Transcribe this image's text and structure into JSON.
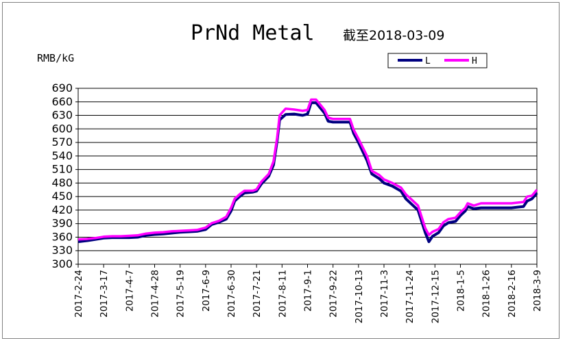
{
  "chart_data": {
    "type": "line",
    "title": "PrNd Metal",
    "subtitle": "截至2018-03-09",
    "ylabel": "RMB/kG",
    "ylim": [
      300,
      690
    ],
    "yticks": [
      "690",
      "660",
      "630",
      "600",
      "570",
      "540",
      "510",
      "480",
      "450",
      "420",
      "390",
      "360",
      "330",
      "300"
    ],
    "grid": true,
    "legend_position": "top-right",
    "xticks": [
      "2017-2-24",
      "2017-3-17",
      "2017-4-7",
      "2017-4-28",
      "2017-5-19",
      "2017-6-9",
      "2017-6-30",
      "2017-7-21",
      "2017-8-11",
      "2017-9-1",
      "2017-9-22",
      "2017-10-13",
      "2017-11-3",
      "2017-11-24",
      "2017-12-15",
      "2018-1-5",
      "2018-1-26",
      "2018-2-16",
      "2018-3-9"
    ],
    "series": [
      {
        "name": "L",
        "color": "#000080",
        "points": [
          [
            "2017-02-24",
            350
          ],
          [
            "2017-03-03",
            352
          ],
          [
            "2017-03-10",
            355
          ],
          [
            "2017-03-17",
            358
          ],
          [
            "2017-03-24",
            359
          ],
          [
            "2017-03-31",
            359
          ],
          [
            "2017-04-07",
            359
          ],
          [
            "2017-04-14",
            360
          ],
          [
            "2017-04-21",
            364
          ],
          [
            "2017-04-28",
            366
          ],
          [
            "2017-05-05",
            367
          ],
          [
            "2017-05-12",
            369
          ],
          [
            "2017-05-19",
            371
          ],
          [
            "2017-05-26",
            372
          ],
          [
            "2017-06-02",
            373
          ],
          [
            "2017-06-09",
            377
          ],
          [
            "2017-06-14",
            388
          ],
          [
            "2017-06-20",
            393
          ],
          [
            "2017-06-26",
            400
          ],
          [
            "2017-06-30",
            418
          ],
          [
            "2017-07-03",
            440
          ],
          [
            "2017-07-07",
            450
          ],
          [
            "2017-07-11",
            458
          ],
          [
            "2017-07-18",
            460
          ],
          [
            "2017-07-21",
            462
          ],
          [
            "2017-07-25",
            478
          ],
          [
            "2017-07-31",
            495
          ],
          [
            "2017-08-04",
            520
          ],
          [
            "2017-08-07",
            575
          ],
          [
            "2017-08-09",
            620
          ],
          [
            "2017-08-14",
            632
          ],
          [
            "2017-08-21",
            633
          ],
          [
            "2017-08-28",
            630
          ],
          [
            "2017-09-01",
            633
          ],
          [
            "2017-09-04",
            658
          ],
          [
            "2017-09-08",
            658
          ],
          [
            "2017-09-12",
            645
          ],
          [
            "2017-09-15",
            635
          ],
          [
            "2017-09-18",
            617
          ],
          [
            "2017-09-22",
            615
          ],
          [
            "2017-10-01",
            615
          ],
          [
            "2017-10-06",
            615
          ],
          [
            "2017-10-09",
            590
          ],
          [
            "2017-10-13",
            570
          ],
          [
            "2017-10-20",
            530
          ],
          [
            "2017-10-24",
            500
          ],
          [
            "2017-10-30",
            490
          ],
          [
            "2017-11-03",
            480
          ],
          [
            "2017-11-10",
            473
          ],
          [
            "2017-11-17",
            462
          ],
          [
            "2017-11-21",
            445
          ],
          [
            "2017-11-27",
            430
          ],
          [
            "2017-12-01",
            420
          ],
          [
            "2017-12-04",
            395
          ],
          [
            "2017-12-07",
            370
          ],
          [
            "2017-12-10",
            350
          ],
          [
            "2017-12-13",
            362
          ],
          [
            "2017-12-18",
            370
          ],
          [
            "2017-12-22",
            385
          ],
          [
            "2017-12-26",
            392
          ],
          [
            "2018-01-01",
            395
          ],
          [
            "2018-01-05",
            408
          ],
          [
            "2018-01-09",
            418
          ],
          [
            "2018-01-11",
            428
          ],
          [
            "2018-01-16",
            423
          ],
          [
            "2018-01-22",
            425
          ],
          [
            "2018-01-26",
            425
          ],
          [
            "2018-02-16",
            425
          ],
          [
            "2018-02-26",
            428
          ],
          [
            "2018-03-01",
            440
          ],
          [
            "2018-03-05",
            445
          ],
          [
            "2018-03-09",
            458
          ]
        ]
      },
      {
        "name": "H",
        "color": "#ff00ff",
        "points": [
          [
            "2017-02-24",
            355
          ],
          [
            "2017-03-03",
            356
          ],
          [
            "2017-03-10",
            358
          ],
          [
            "2017-03-17",
            361
          ],
          [
            "2017-03-24",
            362
          ],
          [
            "2017-03-31",
            362
          ],
          [
            "2017-04-07",
            363
          ],
          [
            "2017-04-14",
            364
          ],
          [
            "2017-04-21",
            368
          ],
          [
            "2017-04-28",
            370
          ],
          [
            "2017-05-05",
            371
          ],
          [
            "2017-05-12",
            373
          ],
          [
            "2017-05-19",
            374
          ],
          [
            "2017-05-26",
            375
          ],
          [
            "2017-06-02",
            376
          ],
          [
            "2017-06-09",
            381
          ],
          [
            "2017-06-14",
            391
          ],
          [
            "2017-06-20",
            396
          ],
          [
            "2017-06-26",
            405
          ],
          [
            "2017-06-30",
            425
          ],
          [
            "2017-07-03",
            445
          ],
          [
            "2017-07-07",
            455
          ],
          [
            "2017-07-11",
            463
          ],
          [
            "2017-07-18",
            463
          ],
          [
            "2017-07-21",
            466
          ],
          [
            "2017-07-25",
            483
          ],
          [
            "2017-07-31",
            500
          ],
          [
            "2017-08-04",
            528
          ],
          [
            "2017-08-07",
            582
          ],
          [
            "2017-08-09",
            630
          ],
          [
            "2017-08-14",
            645
          ],
          [
            "2017-08-21",
            643
          ],
          [
            "2017-08-28",
            640
          ],
          [
            "2017-09-01",
            642
          ],
          [
            "2017-09-04",
            665
          ],
          [
            "2017-09-08",
            665
          ],
          [
            "2017-09-12",
            652
          ],
          [
            "2017-09-15",
            642
          ],
          [
            "2017-09-18",
            625
          ],
          [
            "2017-09-22",
            622
          ],
          [
            "2017-10-01",
            622
          ],
          [
            "2017-10-06",
            622
          ],
          [
            "2017-10-09",
            598
          ],
          [
            "2017-10-13",
            578
          ],
          [
            "2017-10-20",
            540
          ],
          [
            "2017-10-24",
            507
          ],
          [
            "2017-10-30",
            498
          ],
          [
            "2017-11-03",
            488
          ],
          [
            "2017-11-10",
            480
          ],
          [
            "2017-11-17",
            470
          ],
          [
            "2017-11-21",
            455
          ],
          [
            "2017-11-27",
            440
          ],
          [
            "2017-12-01",
            430
          ],
          [
            "2017-12-04",
            405
          ],
          [
            "2017-12-07",
            380
          ],
          [
            "2017-12-10",
            365
          ],
          [
            "2017-12-13",
            372
          ],
          [
            "2017-12-18",
            378
          ],
          [
            "2017-12-22",
            393
          ],
          [
            "2017-12-26",
            400
          ],
          [
            "2018-01-01",
            403
          ],
          [
            "2018-01-05",
            415
          ],
          [
            "2018-01-09",
            425
          ],
          [
            "2018-01-11",
            435
          ],
          [
            "2018-01-16",
            430
          ],
          [
            "2018-01-22",
            435
          ],
          [
            "2018-01-26",
            435
          ],
          [
            "2018-02-16",
            435
          ],
          [
            "2018-02-26",
            438
          ],
          [
            "2018-03-01",
            450
          ],
          [
            "2018-03-05",
            452
          ],
          [
            "2018-03-09",
            465
          ]
        ]
      }
    ]
  }
}
